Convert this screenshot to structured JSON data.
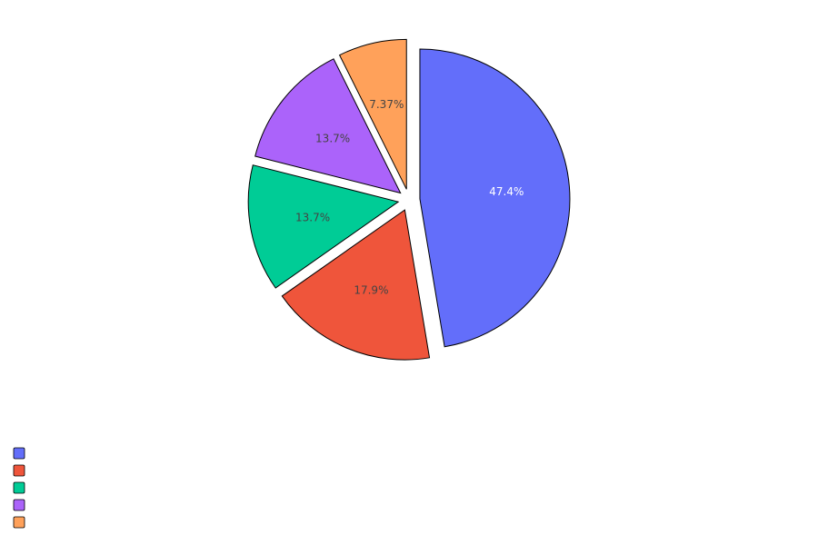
{
  "chart_data": {
    "type": "pie",
    "labels": [
      "",
      "",
      "",
      "",
      ""
    ],
    "values": [
      47.4,
      17.9,
      13.7,
      13.7,
      7.37
    ],
    "text": [
      "47.4%",
      "17.9%",
      "13.7%",
      "13.7%",
      "7.37%"
    ],
    "colors": [
      "#636efa",
      "#ef553b",
      "#00cc96",
      "#ab63fa",
      "#ffa15a"
    ],
    "text_colors": [
      "#ffffff",
      "#444444",
      "#444444",
      "#444444",
      "#444444"
    ],
    "direction": "clockwise",
    "exploded": true,
    "legend_position": "bottom-left"
  }
}
